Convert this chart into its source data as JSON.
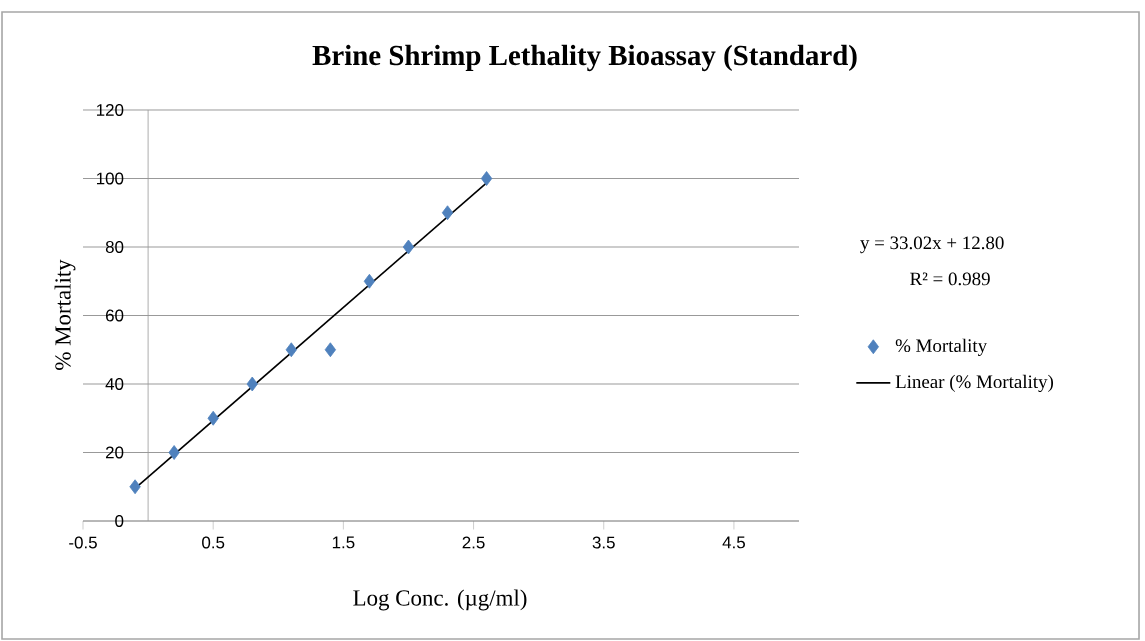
{
  "chart_data": {
    "type": "scatter",
    "title": "Brine Shrimp Lethality Bioassay (Standard)",
    "xlabel": "Log Conc. (µg/ml)",
    "ylabel": "% Mortality",
    "xlim": [
      -0.5,
      5.0
    ],
    "xticks": [
      -0.5,
      0.5,
      1.5,
      2.5,
      3.5,
      4.5
    ],
    "ylim": [
      0,
      120
    ],
    "yticks": [
      0,
      20,
      40,
      60,
      80,
      100,
      120
    ],
    "grid": "y",
    "legend": "right",
    "annotations": [
      "y = 33.02x + 12.80",
      "R² = 0.989"
    ],
    "series": [
      {
        "name": "% Mortality",
        "marker": "diamond",
        "color": "#4f81bd",
        "x": [
          -0.1,
          0.2,
          0.5,
          0.8,
          1.1,
          1.4,
          1.7,
          2.0,
          2.3,
          2.6
        ],
        "values": [
          10,
          20,
          30,
          40,
          50,
          50,
          70,
          80,
          90,
          100
        ]
      },
      {
        "name": "Linear (% Mortality)",
        "type": "line",
        "marker": "none",
        "color": "#000000",
        "x": [
          -0.1,
          2.6
        ],
        "values": [
          9.5,
          98.7
        ]
      }
    ]
  }
}
